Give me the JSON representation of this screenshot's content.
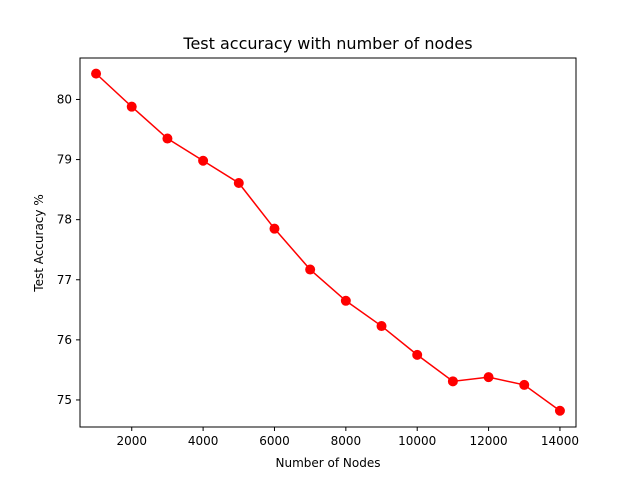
{
  "chart_data": {
    "type": "line",
    "title": "Test accuracy with number of nodes",
    "xlabel": "Number of Nodes",
    "ylabel": "Test Accuracy %",
    "xlim": [
      550,
      14450
    ],
    "ylim": [
      74.55,
      80.69
    ],
    "xticks": [
      2000,
      4000,
      6000,
      8000,
      10000,
      12000,
      14000
    ],
    "yticks": [
      75,
      76,
      77,
      78,
      79,
      80
    ],
    "grid": false,
    "legend": "none",
    "series": [
      {
        "color": "#ff0000",
        "marker": "circle",
        "x": [
          1000,
          2000,
          3000,
          4000,
          5000,
          6000,
          7000,
          8000,
          9000,
          10000,
          11000,
          12000,
          13000,
          14000
        ],
        "y": [
          80.43,
          79.88,
          79.35,
          78.98,
          78.61,
          77.85,
          77.17,
          76.65,
          76.23,
          75.75,
          75.31,
          75.38,
          75.25,
          74.82
        ]
      }
    ]
  }
}
